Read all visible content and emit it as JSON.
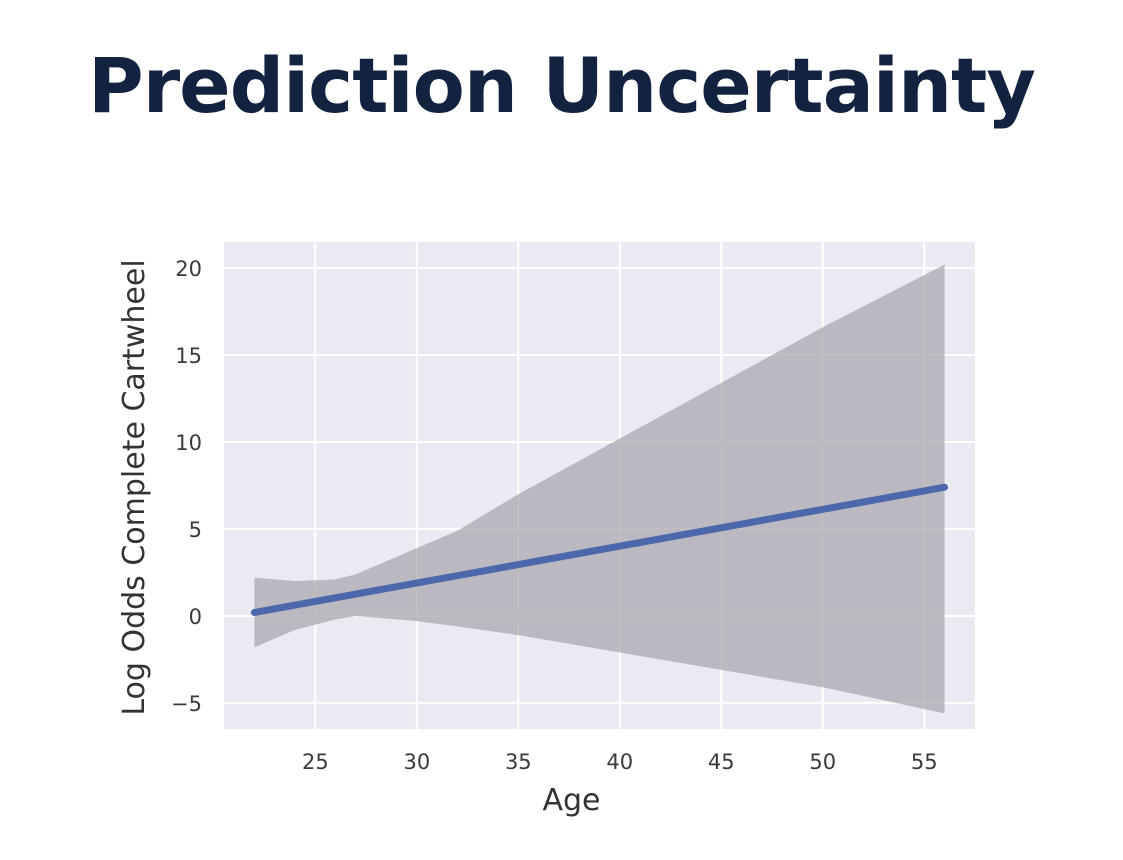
{
  "slide": {
    "title": "Prediction Uncertainty"
  },
  "chart_data": {
    "type": "line",
    "title": "",
    "xlabel": "Age",
    "ylabel": "Log Odds Complete Cartwheel",
    "xlim": [
      20.5,
      57.5
    ],
    "ylim": [
      -6.5,
      21.5
    ],
    "xticks": [
      25,
      30,
      35,
      40,
      45,
      50,
      55
    ],
    "yticks": [
      -5,
      0,
      5,
      10,
      15,
      20
    ],
    "xtick_labels": [
      "25",
      "30",
      "35",
      "40",
      "45",
      "50",
      "55"
    ],
    "ytick_labels": [
      "−5",
      "0",
      "5",
      "10",
      "15",
      "20"
    ],
    "grid": true,
    "legend": "none",
    "series": [
      {
        "x": [
          22,
          56
        ],
        "y": [
          0.2,
          7.4
        ]
      }
    ],
    "confidence_band": {
      "x": [
        22,
        24,
        26,
        27,
        28,
        30,
        32,
        35,
        40,
        45,
        50,
        56
      ],
      "upper": [
        2.2,
        2.0,
        2.1,
        2.4,
        2.9,
        3.9,
        4.9,
        7.0,
        10.2,
        13.4,
        16.6,
        20.2
      ],
      "lower": [
        -1.8,
        -0.8,
        -0.2,
        0.0,
        -0.1,
        -0.3,
        -0.6,
        -1.1,
        -2.1,
        -3.1,
        -4.1,
        -5.6
      ]
    },
    "colors": {
      "plot_background": "#eaeaf2",
      "grid": "#ffffff",
      "line": "#4c68aa",
      "band": "#a7a5ac",
      "tick_text": "#3a3a3a",
      "label_text": "#333333"
    }
  }
}
